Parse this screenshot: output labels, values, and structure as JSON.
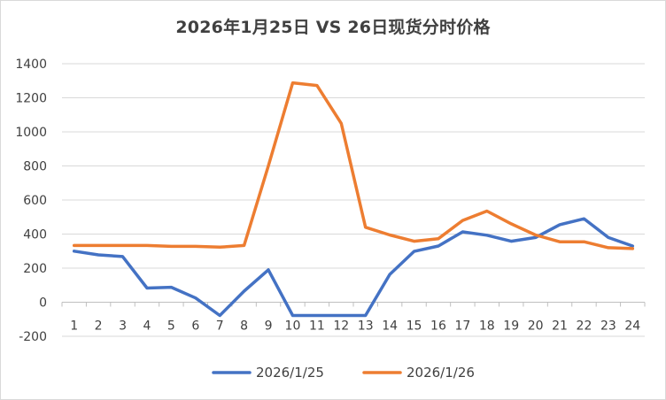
{
  "chart_data": {
    "type": "line",
    "title": "2026年1月25日 VS 26日现货分时价格",
    "xlabel": "",
    "ylabel": "",
    "categories": [
      "1",
      "2",
      "3",
      "4",
      "5",
      "6",
      "7",
      "8",
      "9",
      "10",
      "11",
      "12",
      "13",
      "14",
      "15",
      "16",
      "17",
      "18",
      "19",
      "20",
      "21",
      "22",
      "23",
      "24"
    ],
    "ylim": [
      -200,
      1400
    ],
    "yticks": [
      -200,
      0,
      200,
      400,
      600,
      800,
      1000,
      1200,
      1400
    ],
    "grid": true,
    "legend_position": "bottom",
    "series": [
      {
        "name": "2026/1/25",
        "color": "#4472C4",
        "values": [
          300,
          278,
          268,
          83,
          88,
          25,
          -78,
          65,
          190,
          -78,
          -78,
          -78,
          -78,
          163,
          298,
          330,
          413,
          393,
          358,
          380,
          455,
          490,
          380,
          330
        ]
      },
      {
        "name": "2026/1/26",
        "color": "#ED7D31",
        "values": [
          333,
          333,
          333,
          333,
          328,
          328,
          323,
          333,
          800,
          1288,
          1272,
          1050,
          440,
          395,
          358,
          373,
          480,
          535,
          460,
          395,
          355,
          355,
          320,
          315
        ]
      }
    ]
  }
}
